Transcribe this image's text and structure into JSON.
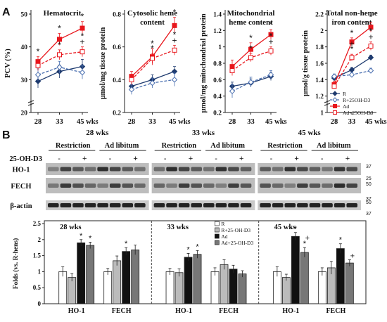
{
  "panel_a": {
    "label": "A"
  },
  "panel_b": {
    "label": "B"
  },
  "colors": {
    "r": "#1f3b6f",
    "r25": "#4a6fb0",
    "ad": "#e8161c",
    "ad25": "#e8161c"
  },
  "chart_data": [
    {
      "type": "line",
      "title": "Hematocrit",
      "ylabel": "PCV (%)",
      "categories": [
        "28",
        "33",
        "45 wks"
      ],
      "ylim": [
        20,
        50
      ],
      "yticks": [
        "20",
        "30",
        "40",
        "50"
      ],
      "axis_break": true,
      "series": [
        {
          "name": "R",
          "values": [
            29.5,
            32.5,
            34.0
          ],
          "err": [
            2.0,
            2.0,
            2.2
          ]
        },
        {
          "name": "R+25OH-D3",
          "values": [
            31.5,
            33.8,
            32.2
          ],
          "err": [
            1.8,
            1.8,
            2.0
          ]
        },
        {
          "name": "Ad",
          "values": [
            35.5,
            42.3,
            45.7
          ],
          "err": [
            1.5,
            1.8,
            2.0
          ]
        },
        {
          "name": "Ad+25OH-D3",
          "values": [
            34.3,
            37.6,
            38.5
          ],
          "err": [
            1.5,
            1.5,
            1.5
          ]
        }
      ],
      "annotations": [
        {
          "text": "*",
          "x": 0,
          "series": 2
        },
        {
          "text": "*",
          "x": 1,
          "series": 2
        },
        {
          "text": "*",
          "x": 1,
          "series": 3
        },
        {
          "text": "*",
          "x": 2,
          "series": 2
        },
        {
          "text": "+",
          "x": 2,
          "series": 3
        },
        {
          "text": "*",
          "x": 2,
          "series": 3
        }
      ]
    },
    {
      "type": "line",
      "title": "Cytosolic heme content",
      "title_lines": [
        "Cytosolic heme",
        "content"
      ],
      "ylabel": "μmol/mg tissue protein",
      "categories": [
        "28",
        "33",
        "45 wks"
      ],
      "ylim": [
        0.2,
        0.8
      ],
      "yticks": [
        "0.2",
        "0.4",
        "0.6",
        "0.8"
      ],
      "series": [
        {
          "name": "R",
          "values": [
            0.36,
            0.4,
            0.45
          ],
          "err": [
            0.03,
            0.03,
            0.03
          ]
        },
        {
          "name": "R+25OH-D3",
          "values": [
            0.34,
            0.38,
            0.4
          ],
          "err": [
            0.03,
            0.03,
            0.04
          ]
        },
        {
          "name": "Ad",
          "values": [
            0.42,
            0.54,
            0.73
          ],
          "err": [
            0.03,
            0.05,
            0.05
          ]
        },
        {
          "name": "Ad+25OH-D3",
          "values": [
            0.4,
            0.53,
            0.58
          ],
          "err": [
            0.03,
            0.03,
            0.03
          ]
        }
      ],
      "annotations": [
        {
          "text": "*",
          "x": 1,
          "series": 2
        },
        {
          "text": "*",
          "x": 1,
          "series": 3
        },
        {
          "text": "*",
          "x": 2,
          "series": 2
        },
        {
          "text": "+",
          "x": 2,
          "series": 3
        },
        {
          "text": "*",
          "x": 2,
          "series": 3
        }
      ]
    },
    {
      "type": "line",
      "title": "Mitochondrial heme content",
      "title_lines": [
        "Mitochondrial",
        "heme content"
      ],
      "ylabel": "μmol/mg mitochondrial protein",
      "categories": [
        "28",
        "33",
        "45 wks"
      ],
      "ylim": [
        0.2,
        1.4
      ],
      "yticks": [
        "0.2",
        "0.4",
        "0.6",
        "0.8",
        "1",
        "1.2",
        "1.4"
      ],
      "series": [
        {
          "name": "R",
          "values": [
            0.52,
            0.56,
            0.64
          ],
          "err": [
            0.05,
            0.05,
            0.05
          ]
        },
        {
          "name": "R+25OH-D3",
          "values": [
            0.46,
            0.57,
            0.66
          ],
          "err": [
            0.08,
            0.06,
            0.05
          ]
        },
        {
          "name": "Ad",
          "values": [
            0.76,
            0.97,
            1.15
          ],
          "err": [
            0.08,
            0.08,
            0.06
          ]
        },
        {
          "name": "Ad+25OH-D3",
          "values": [
            0.71,
            0.87,
            0.95
          ],
          "err": [
            0.06,
            0.05,
            0.05
          ]
        }
      ],
      "annotations": [
        {
          "text": "*",
          "x": 1,
          "series": 2
        },
        {
          "text": "*",
          "x": 1,
          "series": 3
        },
        {
          "text": "*",
          "x": 2,
          "series": 2
        },
        {
          "text": "+",
          "x": 2,
          "series": 3
        },
        {
          "text": "*",
          "x": 2,
          "series": 3
        }
      ]
    },
    {
      "type": "line",
      "title": "Total non-heme iron content",
      "title_lines": [
        "Total non-heme",
        "iron content"
      ],
      "ylabel": "μmol/g tissue protein",
      "categories": [
        "28",
        "33",
        "45 wks"
      ],
      "ylim": [
        1.0,
        2.2
      ],
      "yticks": [
        "1",
        "1.2",
        "1.4",
        "1.6",
        "1.8",
        "2",
        "2.2"
      ],
      "axis_break": true,
      "series": [
        {
          "name": "R",
          "values": [
            1.42,
            1.52,
            1.67
          ],
          "err": [
            0.03,
            0.03,
            0.03
          ]
        },
        {
          "name": "R+25OH-D3",
          "values": [
            1.44,
            1.46,
            1.51
          ],
          "err": [
            0.03,
            0.03,
            0.03
          ]
        },
        {
          "name": "Ad",
          "values": [
            1.34,
            1.86,
            2.04
          ],
          "err": [
            0.04,
            0.05,
            0.06
          ]
        },
        {
          "name": "Ad+25OH-D3",
          "values": [
            1.32,
            1.67,
            1.81
          ],
          "err": [
            0.03,
            0.04,
            0.05
          ]
        }
      ],
      "annotations": [
        {
          "text": "*",
          "x": 1,
          "series": 2
        },
        {
          "text": "*",
          "x": 1,
          "series": 3
        },
        {
          "text": "+",
          "x": 1,
          "series": 3
        },
        {
          "text": "*",
          "x": 2,
          "series": 2
        },
        {
          "text": "+",
          "x": 2,
          "series": 3
        },
        {
          "text": "*",
          "x": 2,
          "series": 3
        }
      ],
      "legend": [
        "R",
        "R+25OH-D3",
        "Ad",
        "Ad+25OH-D3"
      ]
    },
    {
      "type": "bar",
      "ylabel": "Folds (vs. R-hens)",
      "ylim": [
        0,
        2.5
      ],
      "yticks": [
        "0",
        "0.5",
        "1",
        "1.5",
        "2",
        "2.5"
      ],
      "legend": [
        "R",
        "R+25-OH-D3",
        "Ad",
        "Ad+25-OH-D3"
      ],
      "series_colors": [
        "#ffffff",
        "#bbbbbb",
        "#111111",
        "#777777"
      ],
      "groups": [
        {
          "week": "28 wks",
          "genes": [
            {
              "name": "HO-1",
              "values": [
                1.0,
                0.82,
                1.9,
                1.82
              ],
              "err": [
                0.15,
                0.12,
                0.1,
                0.1
              ],
              "marks": [
                "",
                "",
                "*",
                "*"
              ]
            },
            {
              "name": "FECH",
              "values": [
                1.0,
                1.34,
                1.63,
                1.68
              ],
              "err": [
                0.1,
                0.15,
                0.12,
                0.15
              ],
              "marks": [
                "",
                "",
                "*",
                ""
              ]
            }
          ]
        },
        {
          "week": "33 wks",
          "genes": [
            {
              "name": "HO-1",
              "values": [
                1.0,
                0.97,
                1.45,
                1.54
              ],
              "err": [
                0.1,
                0.12,
                0.12,
                0.12
              ],
              "marks": [
                "",
                "",
                "*",
                "*"
              ]
            },
            {
              "name": "FECH",
              "values": [
                1.0,
                1.22,
                1.08,
                0.93
              ],
              "err": [
                0.12,
                0.15,
                0.12,
                0.1
              ],
              "marks": [
                "",
                "",
                "",
                ""
              ]
            }
          ]
        },
        {
          "week": "45 wks",
          "genes": [
            {
              "name": "HO-1",
              "values": [
                1.0,
                0.82,
                2.1,
                1.6
              ],
              "err": [
                0.15,
                0.1,
                0.12,
                0.15
              ],
              "marks": [
                "",
                "",
                "*",
                "+*"
              ]
            },
            {
              "name": "FECH",
              "values": [
                1.0,
                1.12,
                1.72,
                1.27
              ],
              "err": [
                0.12,
                0.2,
                0.15,
                0.1
              ],
              "marks": [
                "",
                "",
                "*",
                "+"
              ]
            }
          ]
        }
      ]
    }
  ],
  "blot": {
    "weeks": [
      "28 wks",
      "33 wks",
      "45 wks"
    ],
    "conditions": [
      "Restriction",
      "Ad libitum"
    ],
    "treatment_label": "25-OH-D3",
    "treatment_signs": [
      "-",
      "+",
      "-",
      "+"
    ],
    "proteins": [
      "HO-1",
      "FECH",
      "β-actin"
    ],
    "markers": [
      {
        "row": "HO-1",
        "labels": [
          "37"
        ]
      },
      {
        "row": "FECH",
        "labels": [
          "25",
          "50"
        ]
      },
      {
        "row": "b-actin",
        "labels": [
          "37",
          "50"
        ]
      },
      {
        "row": "below",
        "labels": [
          "37"
        ]
      }
    ]
  }
}
